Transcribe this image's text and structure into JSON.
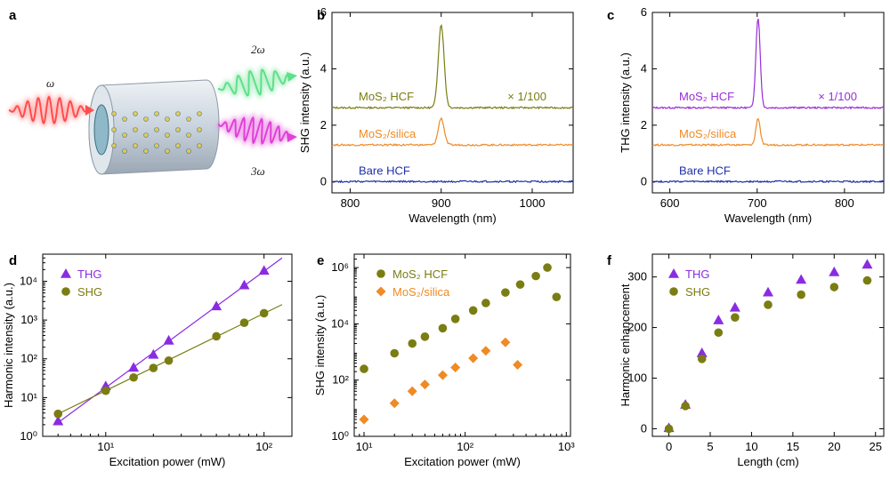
{
  "figure_letters": [
    "a",
    "b",
    "c",
    "d",
    "e",
    "f"
  ],
  "schematic": {
    "input_label": "ω",
    "output_labels": [
      "2ω",
      "3ω"
    ],
    "colors": {
      "input": "#ff4d4d",
      "shg": "#5ee08a",
      "thg": "#e040d8",
      "fiber": "#c9d3dd"
    }
  },
  "chart_data": [
    {
      "panel": "b",
      "type": "line",
      "xlabel": "Wavelength (nm)",
      "ylabel": "SHG intensity (a.u.)",
      "xlim": [
        780,
        1045
      ],
      "ylim": [
        -0.4,
        6
      ],
      "xticks": [
        800,
        900,
        1000
      ],
      "yticks": [
        0,
        2,
        4,
        6
      ],
      "series": [
        {
          "name": "MoS₂ HCF",
          "color": "#7a7d12",
          "baseline": 2.62,
          "peak_center": 900,
          "peak_height": 2.95,
          "peak_width": 4.5,
          "annotation": "× 1/100"
        },
        {
          "name": "MoS₂/silica",
          "color": "#f08a24",
          "baseline": 1.3,
          "peak_center": 900,
          "peak_height": 0.95,
          "peak_width": 4.5
        },
        {
          "name": "Bare HCF",
          "color": "#1f2fa8",
          "baseline": 0.0,
          "peak_center": 900,
          "peak_height": 0,
          "peak_width": 4.5
        }
      ]
    },
    {
      "panel": "c",
      "type": "line",
      "xlabel": "Wavelength (nm)",
      "ylabel": "THG intensity (a.u.)",
      "xlim": [
        580,
        845
      ],
      "ylim": [
        -0.4,
        6
      ],
      "xticks": [
        600,
        700,
        800
      ],
      "yticks": [
        0,
        2,
        4,
        6
      ],
      "series": [
        {
          "name": "MoS₂ HCF",
          "color": "#9a2ed6",
          "baseline": 2.62,
          "peak_center": 701,
          "peak_height": 3.2,
          "peak_width": 3.5,
          "annotation": "× 1/100"
        },
        {
          "name": "MoS₂/silica",
          "color": "#f08a24",
          "baseline": 1.3,
          "peak_center": 701,
          "peak_height": 0.95,
          "peak_width": 3.5
        },
        {
          "name": "Bare HCF",
          "color": "#1f2fa8",
          "baseline": 0.0,
          "peak_center": 701,
          "peak_height": 0,
          "peak_width": 3.5
        }
      ]
    },
    {
      "panel": "d",
      "type": "scatter",
      "xscale": "log",
      "yscale": "log",
      "xlabel": "Excitation power (mW)",
      "ylabel": "Harmonic intensity (a.u.)",
      "xlim": [
        4,
        150
      ],
      "ylim": [
        1,
        50000
      ],
      "xticks": [
        10,
        100
      ],
      "xtick_labels": [
        "10¹",
        "10²"
      ],
      "yticks": [
        1,
        10,
        100,
        1000,
        10000
      ],
      "ytick_labels": [
        "10⁰",
        "10¹",
        "10²",
        "10³",
        "10⁴"
      ],
      "legend": "top-left",
      "series": [
        {
          "name": "THG",
          "marker": "triangle",
          "color": "#8a2be2",
          "x": [
            5,
            10,
            15,
            20,
            25,
            50,
            75,
            100
          ],
          "y": [
            2.5,
            20,
            60,
            130,
            300,
            2300,
            8000,
            19000
          ],
          "fit": {
            "x": [
              4.8,
              130
            ],
            "y": [
              2.0,
              40000
            ]
          }
        },
        {
          "name": "SHG",
          "marker": "circle",
          "color": "#7a7d12",
          "x": [
            5,
            10,
            15,
            20,
            25,
            50,
            75,
            100
          ],
          "y": [
            3.8,
            15,
            33,
            58,
            90,
            380,
            850,
            1500
          ],
          "fit": {
            "x": [
              4.8,
              130
            ],
            "y": [
              3.5,
              2500
            ]
          }
        }
      ]
    },
    {
      "panel": "e",
      "type": "scatter",
      "xscale": "log",
      "yscale": "log",
      "xlabel": "Excitation power (mW)",
      "ylabel": "SHG intensity (a.u.)",
      "xlim": [
        8,
        1100
      ],
      "ylim": [
        1,
        3000000
      ],
      "xticks": [
        10,
        100,
        1000
      ],
      "xtick_labels": [
        "10¹",
        "10²",
        "10³"
      ],
      "yticks": [
        1,
        100,
        10000,
        1000000
      ],
      "ytick_labels": [
        "10⁰",
        "10²",
        "10⁴",
        "10⁶"
      ],
      "legend": "top-left",
      "series": [
        {
          "name": "MoS₂ HCF",
          "marker": "circle",
          "color": "#7a7d12",
          "x": [
            10,
            20,
            30,
            40,
            60,
            80,
            120,
            160,
            250,
            350,
            500,
            650,
            800
          ],
          "y": [
            250,
            900,
            2000,
            3500,
            7000,
            15000,
            30000,
            55000,
            130000,
            250000,
            500000,
            1000000,
            90000
          ]
        },
        {
          "name": "MoS₂/silica",
          "marker": "diamond",
          "color": "#f08a24",
          "x": [
            10,
            20,
            30,
            40,
            60,
            80,
            120,
            160,
            250,
            330
          ],
          "y": [
            4,
            15,
            40,
            70,
            150,
            280,
            600,
            1100,
            2200,
            350
          ]
        }
      ]
    },
    {
      "panel": "f",
      "type": "scatter",
      "xlabel": "Length (cm)",
      "ylabel": "Harmonic enhancement",
      "xlim": [
        -2,
        26
      ],
      "ylim": [
        -15,
        345
      ],
      "xticks": [
        0,
        5,
        10,
        15,
        20,
        25
      ],
      "yticks": [
        0,
        100,
        200,
        300
      ],
      "legend": "top-left",
      "series": [
        {
          "name": "THG",
          "marker": "triangle",
          "color": "#8a2be2",
          "x": [
            0,
            2,
            4,
            6,
            8,
            12,
            16,
            20,
            24
          ],
          "y": [
            2,
            48,
            150,
            215,
            240,
            270,
            295,
            310,
            325
          ]
        },
        {
          "name": "SHG",
          "marker": "circle",
          "color": "#7a7d12",
          "x": [
            0,
            2,
            4,
            6,
            8,
            12,
            16,
            20,
            24
          ],
          "y": [
            0,
            45,
            138,
            190,
            220,
            245,
            265,
            280,
            293
          ]
        }
      ]
    }
  ]
}
